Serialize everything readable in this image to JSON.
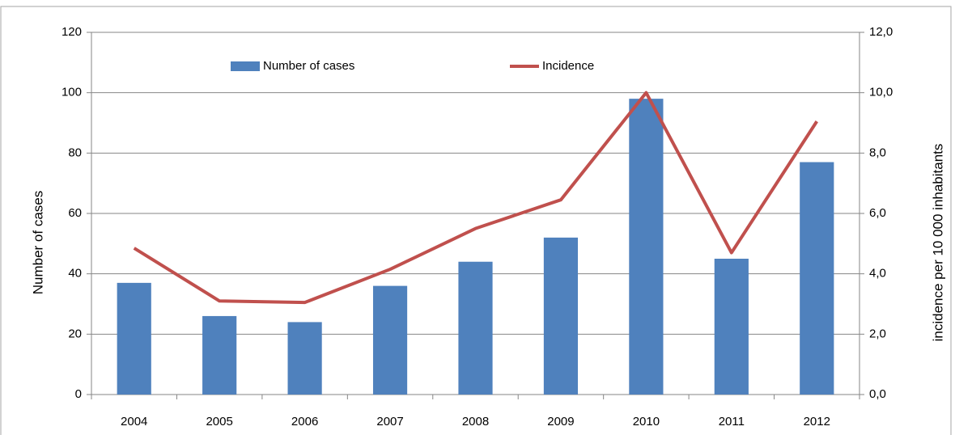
{
  "chart_data": {
    "type": "bar_line",
    "categories": [
      "2004",
      "2005",
      "2006",
      "2007",
      "2008",
      "2009",
      "2010",
      "2011",
      "2012"
    ],
    "series": [
      {
        "name": "Number of cases",
        "type": "bar",
        "color": "#4f81bd",
        "values": [
          37,
          26,
          24,
          36,
          44,
          52,
          98,
          45,
          77
        ]
      },
      {
        "name": "Incidence",
        "type": "line",
        "axis": "y2",
        "color": "#c0504d",
        "values": [
          4.85,
          3.1,
          3.05,
          4.15,
          5.5,
          6.45,
          10.0,
          4.7,
          9.05
        ]
      }
    ],
    "y_label": "Number of cases",
    "y2_label": "incidence per 10 000 inhabitants",
    "ylim": [
      0,
      120
    ],
    "yticks": [
      0,
      20,
      40,
      60,
      80,
      100,
      120
    ],
    "y2lim": [
      0,
      12
    ],
    "y2ticks": [
      {
        "value": 0,
        "label": "0,0"
      },
      {
        "value": 2,
        "label": "2,0"
      },
      {
        "value": 4,
        "label": "4,0"
      },
      {
        "value": 6,
        "label": "6,0"
      },
      {
        "value": 8,
        "label": "8,0"
      },
      {
        "value": 10,
        "label": "10,0"
      },
      {
        "value": 12,
        "label": "12,0"
      }
    ],
    "grid": true,
    "legend": "top"
  }
}
